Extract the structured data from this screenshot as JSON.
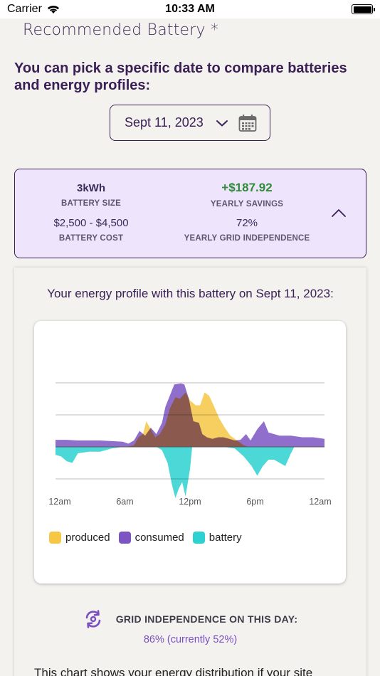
{
  "status_bar": {
    "carrier": "Carrier",
    "time": "10:33 AM"
  },
  "header": {
    "title": "Recommended Battery *"
  },
  "intro": {
    "text": "You can pick a specific date to compare batteries and energy profiles:"
  },
  "date_picker": {
    "value": "Sept 11, 2023"
  },
  "summary": {
    "battery_size": {
      "value": "3kWh",
      "label": "BATTERY SIZE"
    },
    "yearly_savings": {
      "value": "+$187.92",
      "label": "YEARLY SAVINGS"
    },
    "battery_cost": {
      "value": "$2,500 - $4,500",
      "label": "BATTERY COST"
    },
    "grid_independence": {
      "value": "72%",
      "label": "YEARLY GRID INDEPENDENCE"
    }
  },
  "profile": {
    "title": "Your energy profile with this battery on Sept 11, 2023:"
  },
  "chart_data": {
    "type": "area",
    "x_tick_labels": [
      "12am",
      "6am",
      "12pm",
      "6pm",
      "12am"
    ],
    "x_range_hours": [
      0,
      24
    ],
    "grid": true,
    "legend_placement": "bottom-left",
    "series": [
      {
        "name": "produced",
        "color": "#f6c744",
        "points": [
          [
            6.3,
            0
          ],
          [
            7,
            0.05
          ],
          [
            7.4,
            0.3
          ],
          [
            7.8,
            0.4
          ],
          [
            8.1,
            0.8
          ],
          [
            8.5,
            0.55
          ],
          [
            8.9,
            0.3
          ],
          [
            9.3,
            0.4
          ],
          [
            9.8,
            0.7
          ],
          [
            10.2,
            1.2
          ],
          [
            10.7,
            1.55
          ],
          [
            11.1,
            1.5
          ],
          [
            11.6,
            1.7
          ],
          [
            12,
            1.45
          ],
          [
            12.5,
            1.3
          ],
          [
            12.9,
            1.3
          ],
          [
            13.3,
            1.7
          ],
          [
            13.7,
            1.6
          ],
          [
            14.1,
            1.3
          ],
          [
            14.6,
            0.9
          ],
          [
            15.1,
            0.6
          ],
          [
            15.6,
            0.35
          ],
          [
            16.2,
            0.2
          ],
          [
            16.8,
            0.05
          ],
          [
            17.2,
            0
          ]
        ]
      },
      {
        "name": "consumed",
        "color": "#7c55c2",
        "points": [
          [
            0,
            0.22
          ],
          [
            1,
            0.22
          ],
          [
            2,
            0.2
          ],
          [
            3,
            0.2
          ],
          [
            4,
            0.2
          ],
          [
            5,
            0.18
          ],
          [
            6,
            0.16
          ],
          [
            6.5,
            0.1
          ],
          [
            7,
            0.2
          ],
          [
            7.5,
            0.5
          ],
          [
            8,
            0.35
          ],
          [
            8.5,
            0.6
          ],
          [
            9,
            0.4
          ],
          [
            9.5,
            0.75
          ],
          [
            9.8,
            1.25
          ],
          [
            10.2,
            1.6
          ],
          [
            10.6,
            1.95
          ],
          [
            11.2,
            1.98
          ],
          [
            11.5,
            1.95
          ],
          [
            11.9,
            1.5
          ],
          [
            12.3,
            0.8
          ],
          [
            12.8,
            0.75
          ],
          [
            13.1,
            0.4
          ],
          [
            13.5,
            0.3
          ],
          [
            14,
            0.25
          ],
          [
            14.5,
            0.3
          ],
          [
            15,
            0.3
          ],
          [
            15.5,
            0.25
          ],
          [
            16,
            0.2
          ],
          [
            16.5,
            0.22
          ],
          [
            17,
            0.4
          ],
          [
            17.4,
            0.2
          ],
          [
            18,
            0.55
          ],
          [
            18.6,
            0.8
          ],
          [
            19,
            0.45
          ],
          [
            20,
            0.35
          ],
          [
            21,
            0.35
          ],
          [
            22,
            0.3
          ],
          [
            23,
            0.3
          ],
          [
            24,
            0.25
          ]
        ]
      },
      {
        "name": "battery",
        "color": "#2ed1d1",
        "points": [
          [
            0,
            -0.25
          ],
          [
            0.5,
            -0.3
          ],
          [
            1,
            -0.45
          ],
          [
            1.5,
            -0.5
          ],
          [
            2,
            -0.2
          ],
          [
            3,
            -0.15
          ],
          [
            4,
            -0.15
          ],
          [
            5,
            -0.05
          ],
          [
            6,
            0
          ],
          [
            7,
            0
          ],
          [
            8,
            0
          ],
          [
            9,
            0
          ],
          [
            9.5,
            -0.1
          ],
          [
            10,
            -0.5
          ],
          [
            10.4,
            -1.2
          ],
          [
            10.7,
            -1.6
          ],
          [
            11,
            -1.3
          ],
          [
            11.3,
            -1.1
          ],
          [
            11.6,
            -1.55
          ],
          [
            12,
            -0.7
          ],
          [
            12.2,
            0
          ],
          [
            14,
            0
          ],
          [
            15,
            0
          ],
          [
            16,
            -0.05
          ],
          [
            16.8,
            -0.3
          ],
          [
            17.5,
            -0.6
          ],
          [
            18,
            -0.9
          ],
          [
            18.5,
            -0.6
          ],
          [
            19,
            -0.4
          ],
          [
            19.5,
            -0.4
          ],
          [
            20,
            -0.5
          ],
          [
            20.5,
            -0.6
          ],
          [
            21,
            -0.2
          ],
          [
            21.3,
            0
          ],
          [
            24,
            0
          ]
        ]
      }
    ]
  },
  "grid_independence_day": {
    "label": "GRID INDEPENDENCE ON THIS DAY:",
    "value": "86% (currently 52%)"
  },
  "footer": {
    "text": "This chart shows your energy distribution if your site"
  }
}
